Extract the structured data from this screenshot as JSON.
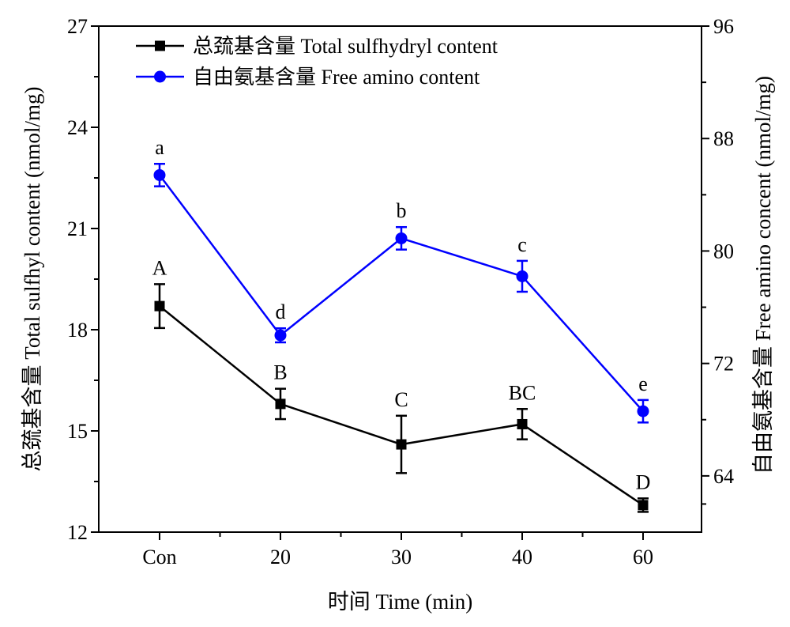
{
  "chart_data": {
    "type": "line",
    "xlabel": "时间 Time (min)",
    "categories": [
      "Con",
      "20",
      "30",
      "40",
      "60"
    ],
    "y_left": {
      "label": "总巯基含量 Total sulfhyl content (nmol/mg)",
      "ylim": [
        12,
        27
      ],
      "ticks": [
        12,
        15,
        18,
        21,
        24,
        27
      ]
    },
    "y_right": {
      "label": "自由氨基含量 Free amino concent (nmol/mg)",
      "ylim": [
        60,
        96
      ],
      "ticks": [
        64,
        72,
        80,
        88,
        96
      ]
    },
    "grid": false,
    "legend_position": "top-left",
    "series": [
      {
        "name": "总巯基含量 Total sulfhydryl content",
        "axis": "left",
        "color": "#000000",
        "marker": "square",
        "values": [
          18.7,
          15.8,
          14.6,
          15.2,
          12.8
        ],
        "errors": [
          0.65,
          0.45,
          0.85,
          0.45,
          0.2
        ],
        "letters": [
          "A",
          "B",
          "C",
          "BC",
          "D"
        ]
      },
      {
        "name": "自由氨基含量 Free amino content",
        "axis": "right",
        "color": "#0000ff",
        "marker": "circle",
        "values": [
          85.4,
          74.0,
          80.9,
          78.2,
          68.6
        ],
        "errors": [
          0.8,
          0.5,
          0.8,
          1.1,
          0.8
        ],
        "letters": [
          "a",
          "d",
          "b",
          "c",
          "e"
        ]
      }
    ]
  }
}
